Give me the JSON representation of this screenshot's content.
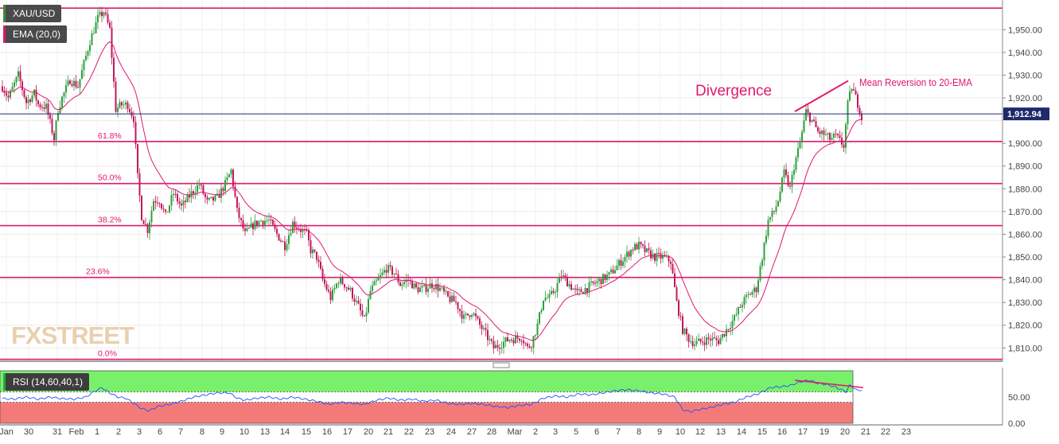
{
  "symbol": "XAU/USD",
  "ema_label": "EMA (20,0)",
  "rsi_label": "RSI (14,60,40,1)",
  "watermark": "FXSTREET",
  "colors": {
    "up_candle": "#2e9f3e",
    "down_candle": "#c2185b",
    "ema": "#e0196b",
    "fib_line": "#e0196b",
    "rsi_line": "#1f4fff",
    "rsi_upper_zone": "#79f06a",
    "rsi_lower_zone": "#f47a7a",
    "current_price_line": "#1d2a6b",
    "grid": "#ececec"
  },
  "chart_data": {
    "type": "candlestick",
    "y_axis_ticks": [
      "1,810.00",
      "1,820.00",
      "1,830.00",
      "1,840.00",
      "1,850.00",
      "1,860.00",
      "1,870.00",
      "1,880.00",
      "1,890.00",
      "1,900.00",
      "1,910.00",
      "1,920.00",
      "1,930.00",
      "1,940.00",
      "1,950.00"
    ],
    "ylim": [
      1805,
      1960
    ],
    "current_price": 1912.94,
    "current_price_label": "1,912.94",
    "x_tick_labels": [
      "Jan",
      "30",
      "31",
      "Feb",
      "1",
      "2",
      "3",
      "6",
      "7",
      "8",
      "9",
      "10",
      "13",
      "14",
      "15",
      "16",
      "17",
      "20",
      "21",
      "22",
      "23",
      "24",
      "27",
      "28",
      "Mar",
      "2",
      "3",
      "5",
      "6",
      "7",
      "8",
      "9",
      "10",
      "12",
      "13",
      "14",
      "15",
      "16",
      "17",
      "19",
      "20",
      "21",
      "22",
      "23"
    ],
    "fibonacci_levels": [
      {
        "label": "0.0%",
        "price": 1805.0
      },
      {
        "label": "23.6%",
        "price": 1841.0
      },
      {
        "label": "38.2%",
        "price": 1863.8
      },
      {
        "label": "50.0%",
        "price": 1882.3
      },
      {
        "label": "61.8%",
        "price": 1900.8
      },
      {
        "label": "",
        "price": 1959.5
      }
    ],
    "price_path": [
      [
        0,
        1925
      ],
      [
        3,
        1920
      ],
      [
        8,
        1930
      ],
      [
        12,
        1918
      ],
      [
        16,
        1922
      ],
      [
        18,
        1917
      ],
      [
        22,
        1916
      ],
      [
        26,
        1902
      ],
      [
        28,
        1915
      ],
      [
        30,
        1920
      ],
      [
        34,
        1928
      ],
      [
        38,
        1925
      ],
      [
        44,
        1945
      ],
      [
        48,
        1955
      ],
      [
        51,
        1958
      ],
      [
        54,
        1950
      ],
      [
        57,
        1915
      ],
      [
        60,
        1917
      ],
      [
        63,
        1917
      ],
      [
        66,
        1911
      ],
      [
        68,
        1885
      ],
      [
        70,
        1868
      ],
      [
        73,
        1862
      ],
      [
        76,
        1875
      ],
      [
        79,
        1875
      ],
      [
        82,
        1868
      ],
      [
        86,
        1878
      ],
      [
        90,
        1872
      ],
      [
        95,
        1878
      ],
      [
        99,
        1882
      ],
      [
        103,
        1874
      ],
      [
        108,
        1876
      ],
      [
        112,
        1882
      ],
      [
        115,
        1888
      ],
      [
        118,
        1870
      ],
      [
        122,
        1860
      ],
      [
        126,
        1864
      ],
      [
        130,
        1866
      ],
      [
        134,
        1866
      ],
      [
        138,
        1860
      ],
      [
        142,
        1855
      ],
      [
        146,
        1865
      ],
      [
        150,
        1862
      ],
      [
        153,
        1860
      ],
      [
        155,
        1853
      ],
      [
        158,
        1850
      ],
      [
        161,
        1840
      ],
      [
        165,
        1832
      ],
      [
        169,
        1840
      ],
      [
        172,
        1838
      ],
      [
        175,
        1835
      ],
      [
        179,
        1828
      ],
      [
        182,
        1822
      ],
      [
        185,
        1835
      ],
      [
        189,
        1840
      ],
      [
        193,
        1845
      ],
      [
        197,
        1843
      ],
      [
        200,
        1838
      ],
      [
        204,
        1840
      ],
      [
        208,
        1836
      ],
      [
        212,
        1836
      ],
      [
        216,
        1838
      ],
      [
        220,
        1836
      ],
      [
        224,
        1832
      ],
      [
        228,
        1830
      ],
      [
        232,
        1823
      ],
      [
        236,
        1826
      ],
      [
        240,
        1820
      ],
      [
        243,
        1816
      ],
      [
        247,
        1810
      ],
      [
        251,
        1812
      ],
      [
        255,
        1814
      ],
      [
        258,
        1814
      ],
      [
        261,
        1815
      ],
      [
        264,
        1810
      ],
      [
        266,
        1812
      ],
      [
        269,
        1820
      ],
      [
        272,
        1832
      ],
      [
        275,
        1832
      ],
      [
        278,
        1836
      ],
      [
        281,
        1842
      ],
      [
        285,
        1838
      ],
      [
        289,
        1834
      ],
      [
        293,
        1836
      ],
      [
        297,
        1838
      ],
      [
        301,
        1840
      ],
      [
        305,
        1842
      ],
      [
        309,
        1846
      ],
      [
        313,
        1850
      ],
      [
        317,
        1854
      ],
      [
        320,
        1855
      ],
      [
        324,
        1852
      ],
      [
        328,
        1850
      ],
      [
        332,
        1850
      ],
      [
        336,
        1848
      ],
      [
        339,
        1830
      ],
      [
        342,
        1818
      ],
      [
        345,
        1814
      ],
      [
        348,
        1812
      ],
      [
        352,
        1813
      ],
      [
        356,
        1814
      ],
      [
        360,
        1813
      ],
      [
        364,
        1818
      ],
      [
        368,
        1823
      ],
      [
        372,
        1830
      ],
      [
        376,
        1834
      ],
      [
        379,
        1836
      ],
      [
        382,
        1850
      ],
      [
        385,
        1866
      ],
      [
        388,
        1870
      ],
      [
        390,
        1875
      ],
      [
        393,
        1887
      ],
      [
        396,
        1880
      ],
      [
        398,
        1890
      ],
      [
        401,
        1900
      ],
      [
        404,
        1914
      ],
      [
        407,
        1910
      ],
      [
        410,
        1905
      ],
      [
        413,
        1904
      ],
      [
        416,
        1902
      ],
      [
        419,
        1903
      ],
      [
        422,
        1900
      ],
      [
        423,
        1899
      ],
      [
        425,
        1917
      ],
      [
        427,
        1925
      ],
      [
        429,
        1920
      ],
      [
        431,
        1915
      ],
      [
        432,
        1911
      ]
    ],
    "rsi": {
      "levels": [
        60,
        40
      ],
      "y_axis_ticks": [
        "0.00",
        "50.00"
      ],
      "path": [
        [
          0,
          47
        ],
        [
          6,
          46
        ],
        [
          12,
          50
        ],
        [
          18,
          46
        ],
        [
          24,
          50
        ],
        [
          30,
          47
        ],
        [
          36,
          46
        ],
        [
          42,
          50
        ],
        [
          46,
          60
        ],
        [
          50,
          68
        ],
        [
          54,
          58
        ],
        [
          58,
          50
        ],
        [
          62,
          48
        ],
        [
          66,
          38
        ],
        [
          70,
          28
        ],
        [
          74,
          24
        ],
        [
          78,
          32
        ],
        [
          84,
          36
        ],
        [
          90,
          42
        ],
        [
          96,
          50
        ],
        [
          102,
          54
        ],
        [
          108,
          58
        ],
        [
          114,
          58
        ],
        [
          118,
          48
        ],
        [
          122,
          44
        ],
        [
          128,
          48
        ],
        [
          134,
          50
        ],
        [
          140,
          46
        ],
        [
          146,
          50
        ],
        [
          152,
          46
        ],
        [
          158,
          42
        ],
        [
          164,
          36
        ],
        [
          170,
          40
        ],
        [
          176,
          38
        ],
        [
          182,
          36
        ],
        [
          188,
          44
        ],
        [
          194,
          48
        ],
        [
          200,
          44
        ],
        [
          206,
          46
        ],
        [
          212,
          42
        ],
        [
          218,
          44
        ],
        [
          224,
          38
        ],
        [
          230,
          36
        ],
        [
          236,
          38
        ],
        [
          242,
          36
        ],
        [
          248,
          32
        ],
        [
          254,
          30
        ],
        [
          260,
          34
        ],
        [
          266,
          36
        ],
        [
          272,
          48
        ],
        [
          278,
          52
        ],
        [
          284,
          50
        ],
        [
          290,
          56
        ],
        [
          296,
          54
        ],
        [
          302,
          58
        ],
        [
          308,
          62
        ],
        [
          314,
          64
        ],
        [
          320,
          62
        ],
        [
          326,
          58
        ],
        [
          332,
          56
        ],
        [
          338,
          50
        ],
        [
          342,
          26
        ],
        [
          346,
          22
        ],
        [
          350,
          26
        ],
        [
          356,
          30
        ],
        [
          362,
          36
        ],
        [
          368,
          40
        ],
        [
          374,
          50
        ],
        [
          380,
          56
        ],
        [
          386,
          68
        ],
        [
          392,
          70
        ],
        [
          396,
          72
        ],
        [
          402,
          80
        ],
        [
          406,
          82
        ],
        [
          410,
          76
        ],
        [
          414,
          74
        ],
        [
          418,
          70
        ],
        [
          422,
          64
        ],
        [
          424,
          60
        ],
        [
          426,
          72
        ],
        [
          428,
          68
        ],
        [
          430,
          62
        ],
        [
          432,
          64
        ]
      ]
    },
    "annotations": [
      {
        "text": "Divergence",
        "anchor": "price_high_divergence"
      },
      {
        "text": "Mean Reversion  to 20-EMA",
        "anchor": "last_high"
      }
    ]
  }
}
